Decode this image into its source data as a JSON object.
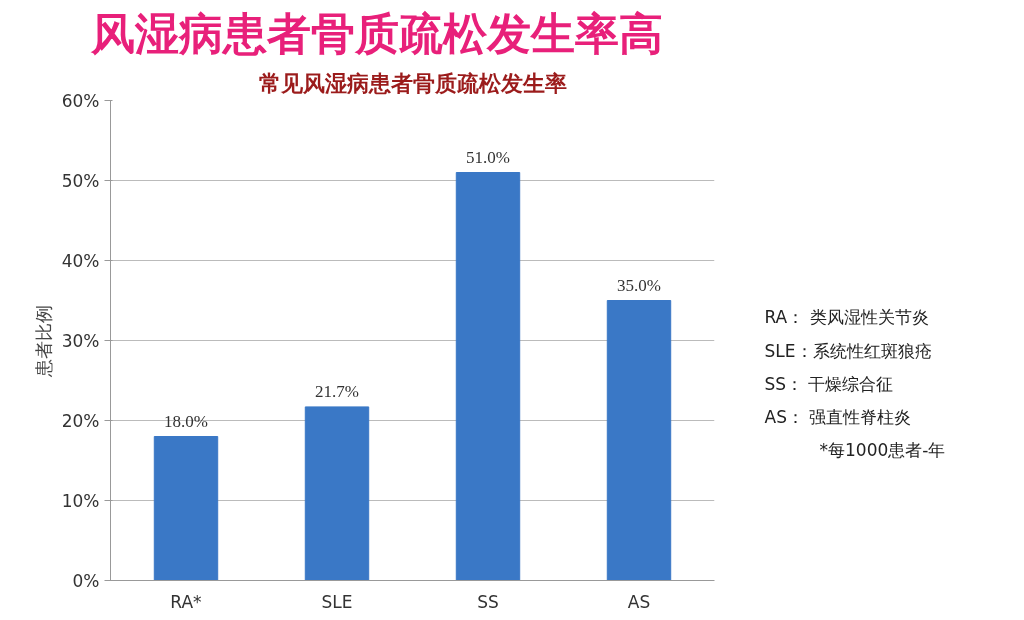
{
  "chart_data": {
    "type": "bar",
    "title": "风湿病患者骨质疏松发生率高",
    "subtitle": "常见风湿病患者骨质疏松发生率",
    "ylabel": "患者比例",
    "categories": [
      "RA*",
      "SLE",
      "SS",
      "AS"
    ],
    "values": [
      18.0,
      21.7,
      51.0,
      35.0
    ],
    "color": "#3a78c6",
    "value_labels": [
      "18.0%",
      "21.7%",
      "51.0%",
      "35.0%"
    ],
    "ylim": [
      0,
      60
    ],
    "yticks": [
      {
        "value": 0,
        "label": "0%"
      },
      {
        "value": 10,
        "label": "10%"
      },
      {
        "value": 20,
        "label": "20%"
      },
      {
        "value": 30,
        "label": "30%"
      },
      {
        "value": 40,
        "label": "40%"
      },
      {
        "value": 50,
        "label": "50%"
      },
      {
        "value": 60,
        "label": "60%"
      }
    ],
    "grid": "y",
    "annotations": [
      "RA：  类风湿性关节炎",
      "SLE：系统性红斑狼疮",
      "SS：  干燥综合征",
      "AS：  强直性脊柱炎",
      "*每1000患者-年"
    ]
  }
}
